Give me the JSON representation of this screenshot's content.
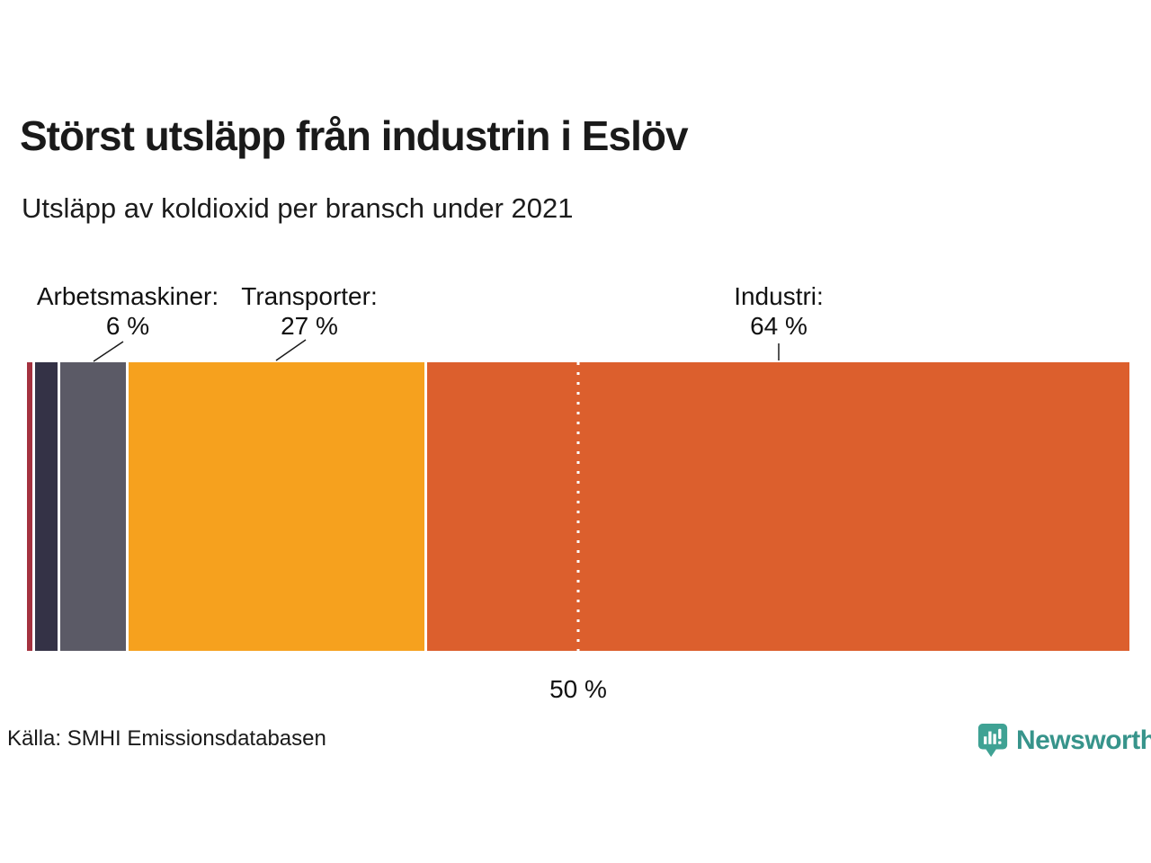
{
  "page": {
    "title": "Störst utsläpp från industrin i Eslöv",
    "subtitle": "Utsläpp av koldioxid per bransch under 2021",
    "source": "Källa: SMHI Emissionsdatabasen"
  },
  "brand": {
    "name": "Newsworthy",
    "icon": "newsworthy-speech-bubble-barchart-icon",
    "icon_color": "#3FA294",
    "text_color": "#37948B"
  },
  "chart_data": {
    "type": "bar",
    "orientation": "horizontal_stacked",
    "title": "Störst utsläpp från industrin i Eslöv",
    "subtitle": "Utsläpp av koldioxid per bransch under 2021",
    "unit": "%",
    "xlim": [
      0,
      100
    ],
    "grid": false,
    "legend": "none",
    "reference_line": {
      "value": 50,
      "label": "50 %",
      "style": "dotted-white-vertical"
    },
    "segments": [
      {
        "label": "",
        "value": 0.5,
        "color": "#A4323F"
      },
      {
        "label": "",
        "value": 2,
        "color": "#343246"
      },
      {
        "label": "Arbetsmaskiner",
        "value": 6,
        "color": "#5B5A66"
      },
      {
        "label": "Transporter",
        "value": 27,
        "color": "#F6A11E"
      },
      {
        "label": "Industri",
        "value": 64,
        "color": "#DC5F2D"
      }
    ],
    "annotations": [
      {
        "label": "Arbetsmaskiner:",
        "value_label": "6 %"
      },
      {
        "label": "Transporter:",
        "value_label": "27 %"
      },
      {
        "label": "Industri:",
        "value_label": "64 %"
      }
    ]
  }
}
